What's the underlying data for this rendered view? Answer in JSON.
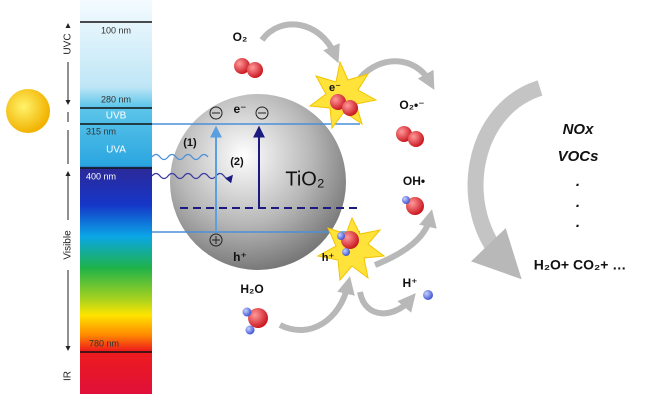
{
  "spectrum": {
    "regions": [
      "UVC",
      "Visible",
      "IR"
    ],
    "bands": [
      "UVB",
      "UVA"
    ],
    "wavelengths": [
      "100 nm",
      "280 nm",
      "315 nm",
      "400 nm",
      "780 nm"
    ]
  },
  "particle": {
    "label": "TiO₂",
    "electron": "e⁻",
    "hole": "h⁺",
    "paths": [
      "(1)",
      "(2)"
    ]
  },
  "species": {
    "o2": "O₂",
    "electron": "e⁻",
    "superoxide": "O₂•⁻",
    "hydroxyl": "OH•",
    "hole": "h⁺",
    "water": "H₂O",
    "proton": "H⁺"
  },
  "products": {
    "pollutants": [
      "NOx",
      "VOCs"
    ],
    "dots": [
      ".",
      ".",
      "."
    ],
    "result": "H₂O+ CO₂+ …"
  }
}
